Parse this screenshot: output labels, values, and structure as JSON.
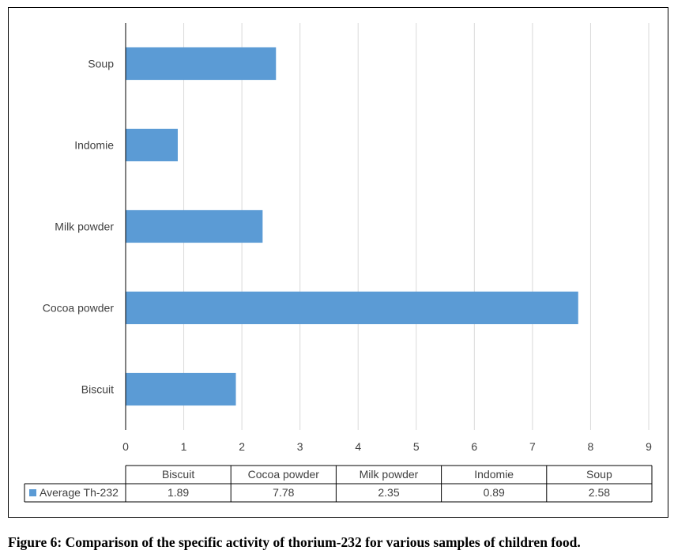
{
  "caption": "Figure 6: Comparison of the specific activity of thorium-232 for various samples of children food.",
  "chart_data": {
    "type": "bar",
    "orientation": "horizontal",
    "categories": [
      "Biscuit",
      "Cocoa powder",
      "Milk powder",
      "Indomie",
      "Soup"
    ],
    "series": [
      {
        "name": "Average Th-232",
        "values": [
          1.89,
          7.78,
          2.35,
          0.89,
          2.58
        ],
        "color": "#5B9BD5"
      }
    ],
    "xlim": [
      0,
      9
    ],
    "xticks": [
      0,
      1,
      2,
      3,
      4,
      5,
      6,
      7,
      8,
      9
    ],
    "grid": true,
    "data_table": true,
    "legend": "in data table",
    "title": "",
    "xlabel": "",
    "ylabel": ""
  }
}
